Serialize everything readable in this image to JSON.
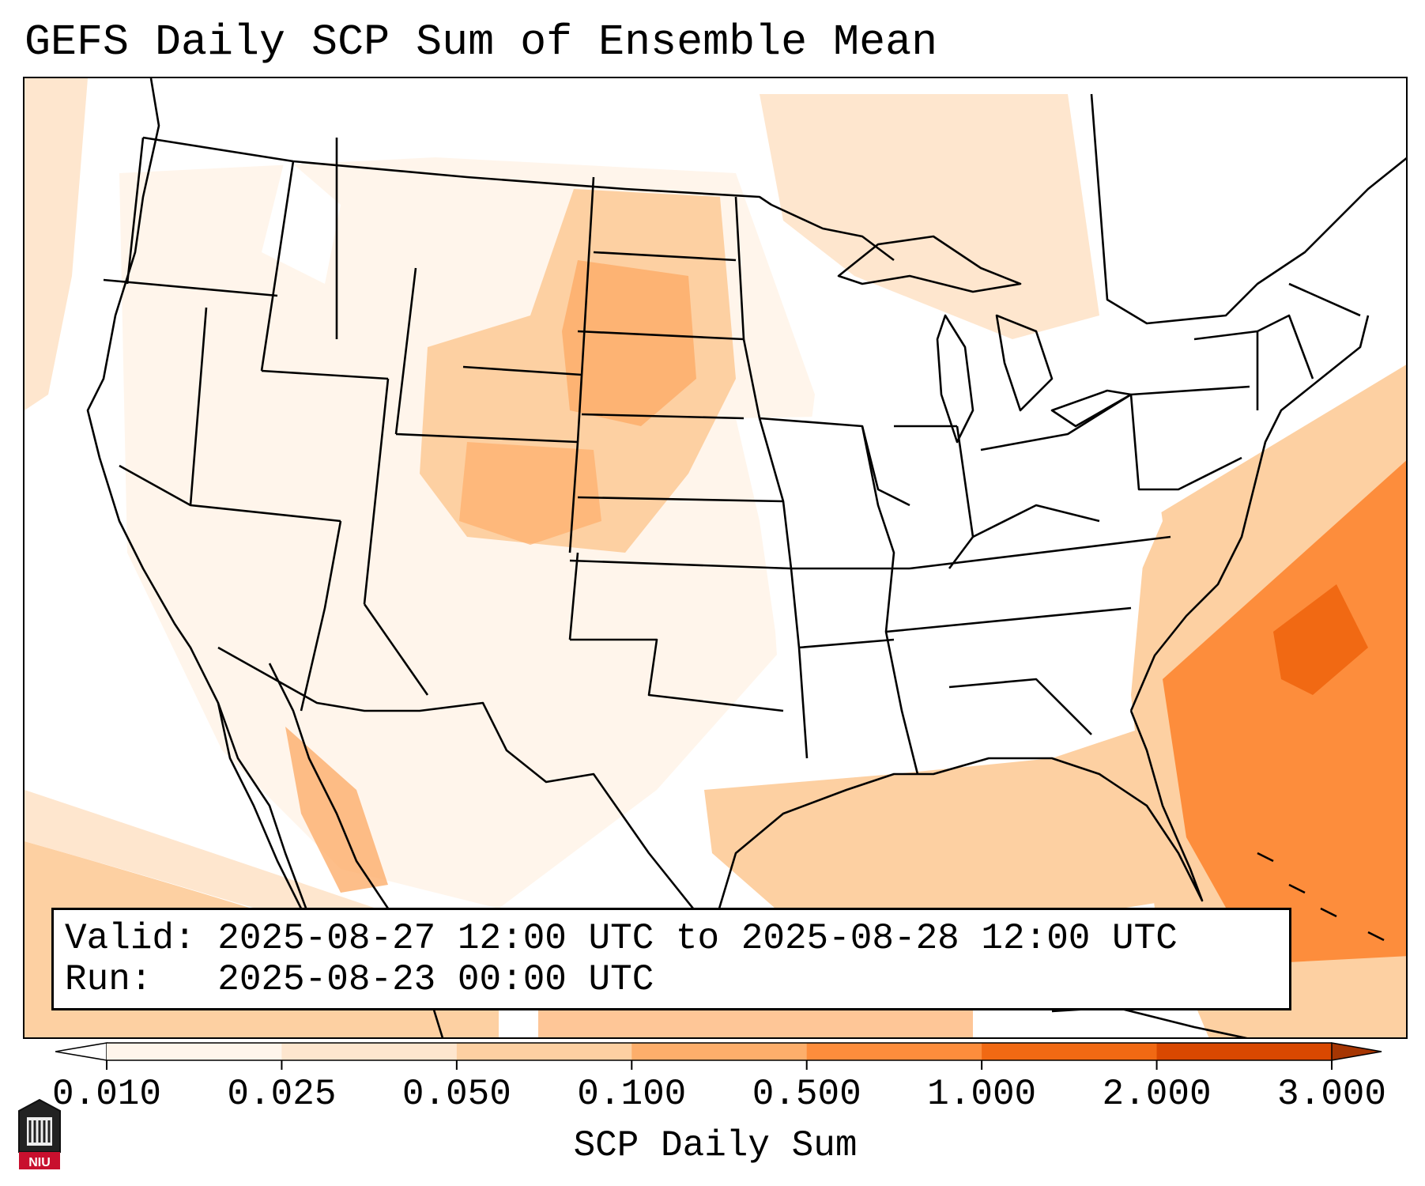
{
  "title": "GEFS Daily SCP Sum of Ensemble Mean",
  "info": {
    "valid_line": "Valid: 2025-08-27 12:00 UTC to 2025-08-28 12:00 UTC",
    "run_line": "Run:   2025-08-23 00:00 UTC"
  },
  "colorbar": {
    "label": "SCP Daily Sum",
    "ticks": [
      "0.010",
      "0.025",
      "0.050",
      "0.100",
      "0.500",
      "1.000",
      "2.000",
      "3.000"
    ],
    "colors": [
      "#fff5eb",
      "#fee6ce",
      "#fdd0a2",
      "#fdae6b",
      "#fd8d3c",
      "#f16913",
      "#d94801"
    ],
    "under_color": "#ffffff",
    "over_color": "#a63603",
    "extend": "both"
  },
  "logo": {
    "text": "NIU",
    "color": "#c8102e"
  },
  "map": {
    "projection": "Lambert conformal, CONUS",
    "basemap": [
      "coastlines",
      "country borders",
      "state borders"
    ],
    "field": "SCP daily sum (shaded)"
  }
}
